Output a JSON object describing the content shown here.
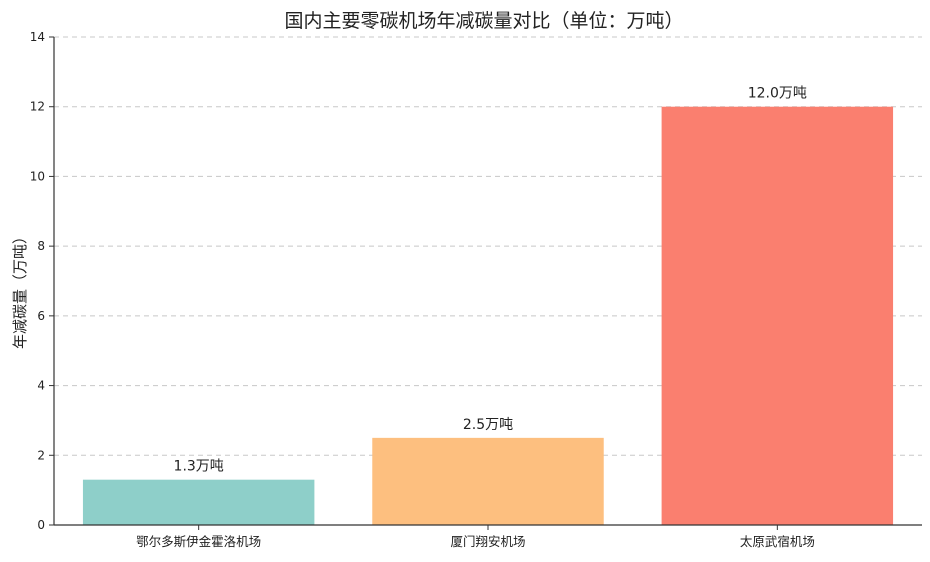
{
  "chart_data": {
    "type": "bar",
    "title": "国内主要零碳机场年减碳量对比（单位：万吨）",
    "xlabel": "",
    "ylabel": "年减碳量（万吨）",
    "categories": [
      "鄂尔多斯伊金霍洛机场",
      "厦门翔安机场",
      "太原武宿机场"
    ],
    "values": [
      1.3,
      2.5,
      12.0
    ],
    "data_labels": [
      "1.3万吨",
      "2.5万吨",
      "12.0万吨"
    ],
    "colors": [
      "#8ecfc9",
      "#fdbf7f",
      "#fa7f6f"
    ],
    "ylim": [
      0,
      14
    ],
    "yticks": [
      0,
      2,
      4,
      6,
      8,
      10,
      12,
      14
    ],
    "grid": "horizontal-dashed",
    "legend": "none"
  }
}
